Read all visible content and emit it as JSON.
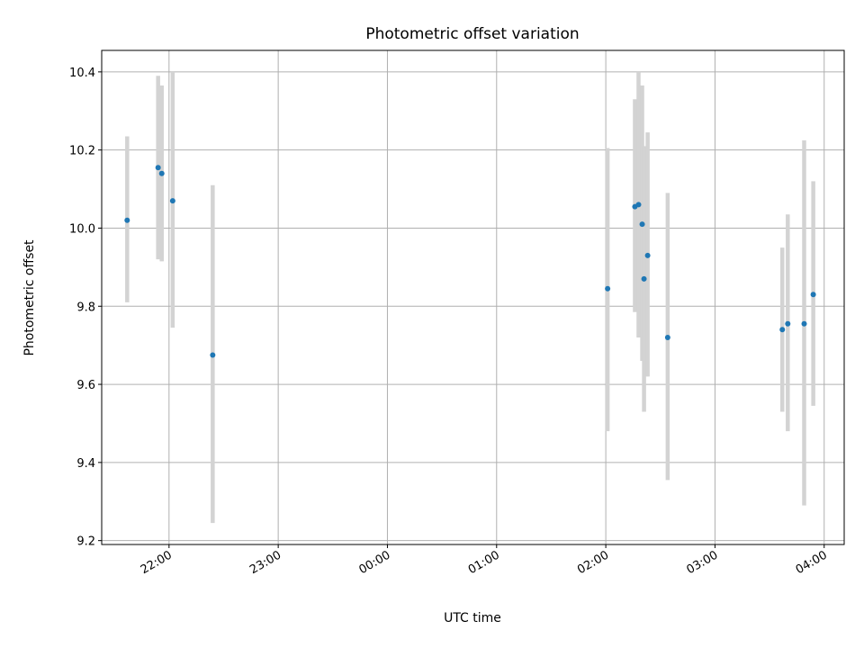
{
  "chart_data": {
    "type": "scatter",
    "title": "Photometric offset variation",
    "xlabel": "UTC time",
    "ylabel": "Photometric offset",
    "x_is_time": true,
    "xlim": [
      "21:23",
      "04:11"
    ],
    "ylim": [
      9.19,
      10.455
    ],
    "x_ticks": [
      "22:00",
      "23:00",
      "00:00",
      "01:00",
      "02:00",
      "03:00",
      "04:00"
    ],
    "y_ticks": [
      9.2,
      9.4,
      9.6,
      9.8,
      10.0,
      10.2,
      10.4
    ],
    "y_tick_labels": [
      "9.2",
      "9.4",
      "9.6",
      "9.8",
      "10.0",
      "10.2",
      "10.4"
    ],
    "grid": true,
    "colors": {
      "points": "#1f77b4",
      "errorbars": "#d3d3d3",
      "grid": "#b0b0b0"
    },
    "series": [
      {
        "points": [
          {
            "x": "21:37",
            "y": 10.02,
            "ylow": 9.81,
            "yhigh": 10.235
          },
          {
            "x": "21:54",
            "y": 10.155,
            "ylow": 9.92,
            "yhigh": 10.39
          },
          {
            "x": "21:56",
            "y": 10.14,
            "ylow": 9.915,
            "yhigh": 10.365
          },
          {
            "x": "22:02",
            "y": 10.07,
            "ylow": 9.745,
            "yhigh": 10.4
          },
          {
            "x": "22:24",
            "y": 9.675,
            "ylow": 9.245,
            "yhigh": 10.11
          },
          {
            "x": "02:01",
            "y": 9.845,
            "ylow": 9.48,
            "yhigh": 10.205
          },
          {
            "x": "02:16",
            "y": 10.055,
            "ylow": 9.785,
            "yhigh": 10.33
          },
          {
            "x": "02:18",
            "y": 10.06,
            "ylow": 9.72,
            "yhigh": 10.4
          },
          {
            "x": "02:20",
            "y": 10.01,
            "ylow": 9.66,
            "yhigh": 10.365
          },
          {
            "x": "02:21",
            "y": 9.87,
            "ylow": 9.53,
            "yhigh": 10.21
          },
          {
            "x": "02:23",
            "y": 9.93,
            "ylow": 9.62,
            "yhigh": 10.245
          },
          {
            "x": "02:34",
            "y": 9.72,
            "ylow": 9.355,
            "yhigh": 10.09
          },
          {
            "x": "03:37",
            "y": 9.74,
            "ylow": 9.53,
            "yhigh": 9.95
          },
          {
            "x": "03:40",
            "y": 9.755,
            "ylow": 9.48,
            "yhigh": 10.035
          },
          {
            "x": "03:49",
            "y": 9.755,
            "ylow": 9.29,
            "yhigh": 10.225
          },
          {
            "x": "03:54",
            "y": 9.83,
            "ylow": 9.545,
            "yhigh": 10.12
          }
        ]
      }
    ]
  }
}
